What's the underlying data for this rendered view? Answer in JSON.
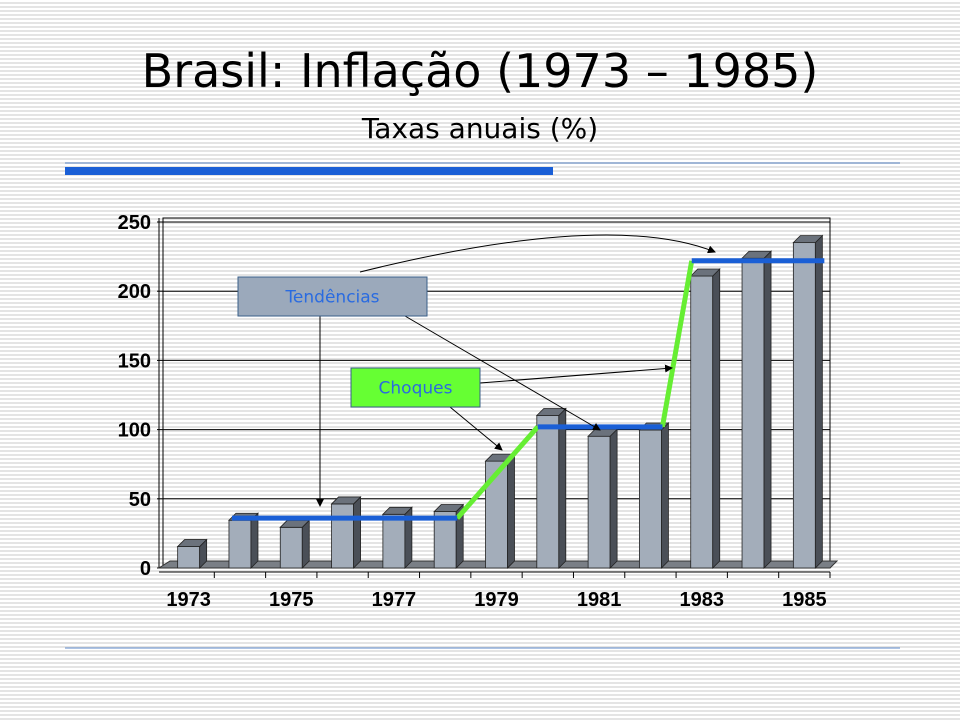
{
  "title": "Brasil: Inflação (1973 – 1985)",
  "subtitle": "Taxas anuais (%)",
  "chart_data": {
    "type": "bar",
    "title": "",
    "xlabel": "",
    "ylabel": "",
    "categories": [
      "1973",
      "1974",
      "1975",
      "1976",
      "1977",
      "1978",
      "1979",
      "1980",
      "1981",
      "1982",
      "1983",
      "1984",
      "1985"
    ],
    "x_tick_labels": [
      "1973",
      "1975",
      "1977",
      "1979",
      "1981",
      "1983",
      "1985"
    ],
    "values": [
      15.5,
      34.5,
      29.4,
      46.3,
      38.8,
      40.8,
      77.2,
      110.2,
      95.2,
      99.7,
      211.0,
      223.8,
      235.1
    ],
    "ylim": [
      0,
      250
    ],
    "y_ticks": [
      0,
      50,
      100,
      150,
      200,
      250
    ],
    "grid": true,
    "bar_color": "#a3adba",
    "trend_lines": [
      {
        "from": "1974",
        "to": "1978",
        "value": 36
      },
      {
        "from": "1980",
        "to": "1982",
        "value": 102
      },
      {
        "from": "1983",
        "to": "1985",
        "value": 222
      }
    ],
    "trend_color": "#1a5fd6",
    "shock_color": "#66ee33",
    "annotations": [
      {
        "label": "Tendências",
        "fill": "#9ba9bb",
        "text_color": "#2a6be0"
      },
      {
        "label": "Choques",
        "fill": "#66ff33",
        "text_color": "#2a6be0"
      }
    ]
  }
}
